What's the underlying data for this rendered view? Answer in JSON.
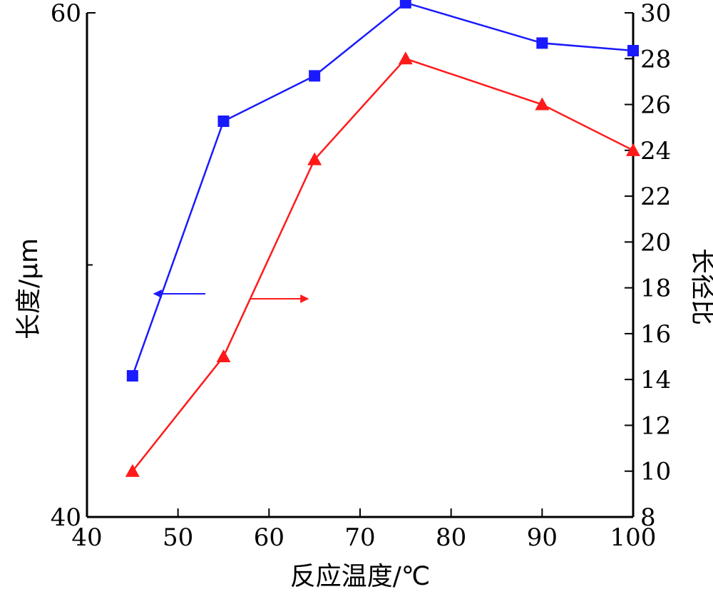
{
  "chart_data": {
    "type": "line",
    "xlabel": "反应温度/℃",
    "ylabel": "长度/μm",
    "y2label": "长径比",
    "xlim": [
      40,
      100
    ],
    "ylim": [
      40,
      60
    ],
    "y2lim": [
      8,
      30
    ],
    "x_ticks": [
      40,
      50,
      60,
      70,
      80,
      90,
      100
    ],
    "y_ticks": [
      40,
      60
    ],
    "y2_ticks": [
      8,
      10,
      12,
      14,
      16,
      18,
      20,
      22,
      24,
      26,
      28,
      30
    ],
    "grid": false,
    "series": [
      {
        "axis": "left",
        "marker": "square",
        "color": "#1a1aff",
        "x": [
          45,
          55,
          65,
          75,
          90,
          100
        ],
        "values": [
          45.6,
          55.7,
          57.5,
          60.4,
          58.8,
          58.5
        ]
      },
      {
        "axis": "right",
        "marker": "triangle",
        "color": "#ff1a1a",
        "x": [
          45,
          55,
          65,
          75,
          90,
          100
        ],
        "values": [
          10.0,
          15.0,
          23.6,
          28.0,
          26.0,
          24.0
        ]
      }
    ],
    "annotations": [
      {
        "type": "arrow",
        "direction": "left",
        "series": 0
      },
      {
        "type": "arrow",
        "direction": "right",
        "series": 1
      }
    ]
  }
}
